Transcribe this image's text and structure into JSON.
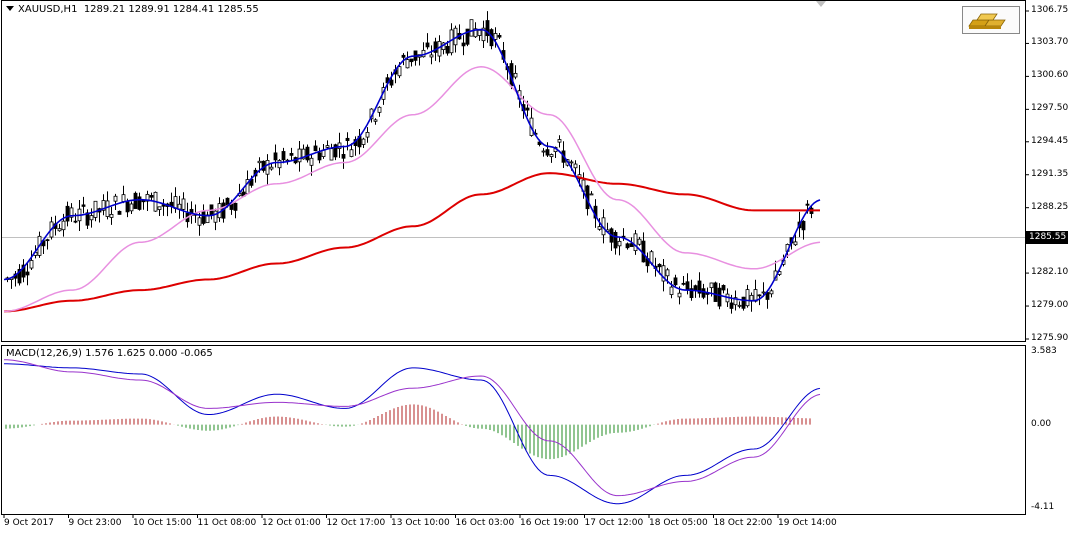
{
  "window": {
    "symbol_title": "XAUUSD,H1",
    "ohlc": "1289.21 1289.91 1284.41 1285.55",
    "current_price": "1285.55",
    "logo_icon": "gold-bars-icon"
  },
  "macd": {
    "title": "MACD(12,26,9) 1.576 1.625 0.000 -0.065",
    "y_ticks": [
      "3.583",
      "0.00",
      "-4.11"
    ]
  },
  "price_axis": {
    "ticks": [
      "1306.75",
      "1303.70",
      "1300.60",
      "1297.50",
      "1294.45",
      "1291.35",
      "1288.25",
      "1282.10",
      "1279.00",
      "1275.90"
    ]
  },
  "time_axis": {
    "ticks": [
      "9 Oct 2017",
      "9 Oct 23:00",
      "10 Oct 15:00",
      "11 Oct 08:00",
      "12 Oct 01:00",
      "12 Oct 17:00",
      "13 Oct 10:00",
      "16 Oct 03:00",
      "16 Oct 19:00",
      "17 Oct 12:00",
      "18 Oct 05:00",
      "18 Oct 22:00",
      "19 Oct 14:00"
    ]
  },
  "colors": {
    "candle": "#000000",
    "ma_fast": "#0000cc",
    "ma_mid": "#e890e0",
    "ma_slow": "#dd0000",
    "macd_main": "#0000cc",
    "macd_signal": "#9933cc",
    "hist_up": "#b22222",
    "hist_down": "#228b22"
  },
  "chart_data": {
    "type": "line",
    "symbol": "XAUUSD",
    "timeframe": "H1",
    "x": [
      "9 Oct 2017",
      "9 Oct 23:00",
      "10 Oct 15:00",
      "11 Oct 08:00",
      "12 Oct 01:00",
      "12 Oct 17:00",
      "13 Oct 10:00",
      "16 Oct 03:00",
      "16 Oct 19:00",
      "17 Oct 12:00",
      "18 Oct 05:00",
      "18 Oct 22:00",
      "19 Oct 14:00"
    ],
    "series": [
      {
        "values": [
          1281.5,
          1287.5,
          1289.0,
          1287.5,
          1292.5,
          1294.0,
          1302.5,
          1305.0,
          1294.0,
          1285.5,
          1280.5,
          1279.5,
          1289.0
        ]
      },
      {
        "values": [
          1278.5,
          1280.5,
          1285.0,
          1288.0,
          1290.5,
          1292.5,
          1297.0,
          1301.5,
          1297.0,
          1289.0,
          1284.0,
          1282.5,
          1285.0
        ]
      },
      {
        "values": [
          1278.5,
          1279.5,
          1280.5,
          1281.5,
          1283.0,
          1284.5,
          1286.5,
          1289.5,
          1291.5,
          1290.5,
          1289.5,
          1288.0,
          1288.0
        ]
      }
    ],
    "ylim": [
      1275.9,
      1306.75
    ],
    "last_price": 1285.55,
    "sub_charts": [
      {
        "name": "MACD(12,26,9)",
        "type": "line",
        "x": [
          "9 Oct 2017",
          "9 Oct 23:00",
          "10 Oct 15:00",
          "11 Oct 08:00",
          "12 Oct 01:00",
          "12 Oct 17:00",
          "13 Oct 10:00",
          "16 Oct 03:00",
          "16 Oct 19:00",
          "17 Oct 12:00",
          "18 Oct 05:00",
          "18 Oct 22:00",
          "19 Oct 14:00"
        ],
        "series": [
          {
            "values": [
              3.0,
              2.8,
              2.5,
              0.5,
              1.5,
              0.8,
              2.8,
              2.2,
              -2.5,
              -3.9,
              -2.5,
              -1.2,
              1.8
            ]
          },
          {
            "values": [
              3.2,
              2.6,
              2.2,
              0.8,
              1.1,
              0.9,
              1.8,
              2.4,
              -0.8,
              -3.5,
              -2.8,
              -1.6,
              1.5
            ]
          }
        ],
        "histogram": [
          -0.2,
          0.2,
          0.3,
          -0.3,
          0.4,
          -0.1,
          1.0,
          -0.2,
          -1.7,
          -0.4,
          0.3,
          0.4,
          0.3
        ],
        "ylim": [
          -4.11,
          3.583
        ]
      }
    ]
  }
}
